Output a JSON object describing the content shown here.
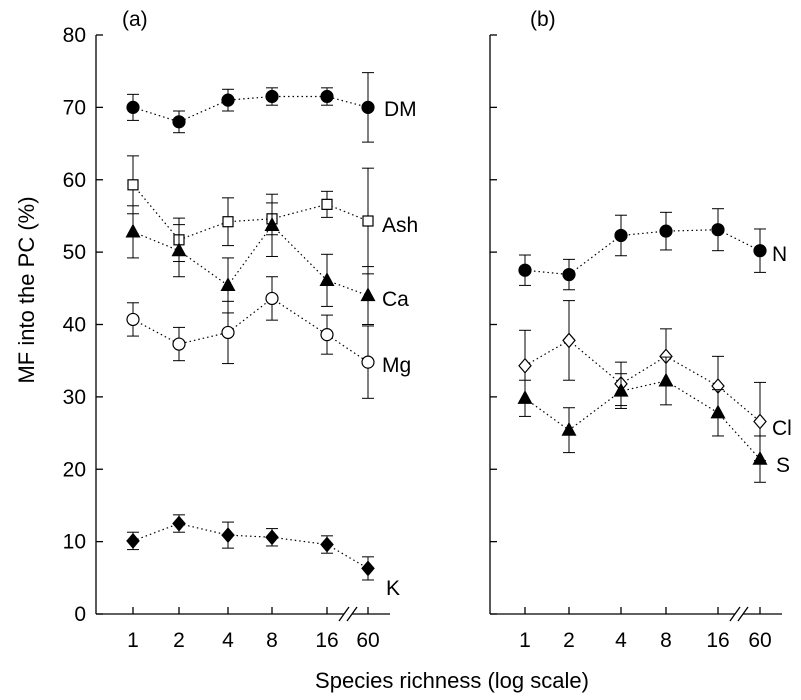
{
  "chart_data": [
    {
      "type": "scatter",
      "panel_label": "(a)",
      "ylabel": "MF into the PC (%)",
      "xlabel": "Species richness (log scale)",
      "ylim": [
        0,
        80
      ],
      "yticks": [
        "0",
        "10",
        "20",
        "30",
        "40",
        "50",
        "60",
        "70",
        "80"
      ],
      "categories": [
        "1",
        "2",
        "4",
        "8",
        "16",
        "60"
      ],
      "axis_break": "between 16 and 60",
      "grid": false,
      "series": [
        {
          "name": "DM",
          "marker": "filled-circle",
          "x": [
            "1",
            "2",
            "4",
            "8",
            "16",
            "60"
          ],
          "values": [
            70,
            68,
            71,
            71.5,
            71.5,
            70
          ],
          "error": [
            1.8,
            1.5,
            1.5,
            1.2,
            1.2,
            4.8
          ]
        },
        {
          "name": "Ash",
          "marker": "open-square",
          "x": [
            "1",
            "2",
            "4",
            "8",
            "16",
            "60"
          ],
          "values": [
            59.3,
            51.7,
            54.2,
            54.6,
            56.6,
            54.3
          ],
          "error": [
            4,
            3,
            3.3,
            2.2,
            1.8,
            7.3
          ]
        },
        {
          "name": "Ca",
          "marker": "filled-triangle",
          "x": [
            "1",
            "2",
            "4",
            "8",
            "16",
            "60"
          ],
          "values": [
            52.8,
            50.2,
            45.4,
            53.7,
            46.1,
            44
          ],
          "error": [
            3.6,
            3.6,
            3.8,
            4.3,
            3.6,
            4
          ]
        },
        {
          "name": "Mg",
          "marker": "open-circle",
          "x": [
            "1",
            "2",
            "4",
            "8",
            "16",
            "60"
          ],
          "values": [
            40.7,
            37.3,
            38.9,
            43.6,
            38.6,
            34.8
          ],
          "error": [
            2.3,
            2.3,
            4.3,
            3,
            2.7,
            5
          ]
        },
        {
          "name": "K",
          "marker": "filled-diamond",
          "x": [
            "1",
            "2",
            "4",
            "8",
            "16",
            "60"
          ],
          "values": [
            10.1,
            12.5,
            10.9,
            10.6,
            9.6,
            6.3
          ],
          "error": [
            1.2,
            1.2,
            1.8,
            1.2,
            1.2,
            1.6
          ]
        }
      ]
    },
    {
      "type": "scatter",
      "panel_label": "(b)",
      "ylim": [
        0,
        80
      ],
      "categories": [
        "1",
        "2",
        "4",
        "8",
        "16",
        "60"
      ],
      "axis_break": "between 16 and 60",
      "grid": false,
      "series": [
        {
          "name": "N",
          "marker": "filled-circle",
          "x": [
            "1",
            "2",
            "4",
            "8",
            "16",
            "60"
          ],
          "values": [
            47.5,
            46.9,
            52.3,
            52.9,
            53.1,
            50.2
          ],
          "error": [
            2.1,
            2.1,
            2.8,
            2.6,
            2.9,
            3
          ]
        },
        {
          "name": "Cl",
          "marker": "open-diamond",
          "x": [
            "1",
            "2",
            "4",
            "8",
            "16",
            "60"
          ],
          "values": [
            34.3,
            37.8,
            31.8,
            35.6,
            31.5,
            26.6
          ],
          "error": [
            4.9,
            5.5,
            3,
            3.8,
            4.1,
            5.4
          ]
        },
        {
          "name": "S",
          "marker": "filled-triangle",
          "x": [
            "1",
            "2",
            "4",
            "8",
            "16",
            "60"
          ],
          "values": [
            29.8,
            25.4,
            30.8,
            32.2,
            27.8,
            21.4
          ],
          "error": [
            2.5,
            3.1,
            2.4,
            3.3,
            3.2,
            3.2
          ]
        }
      ]
    }
  ]
}
